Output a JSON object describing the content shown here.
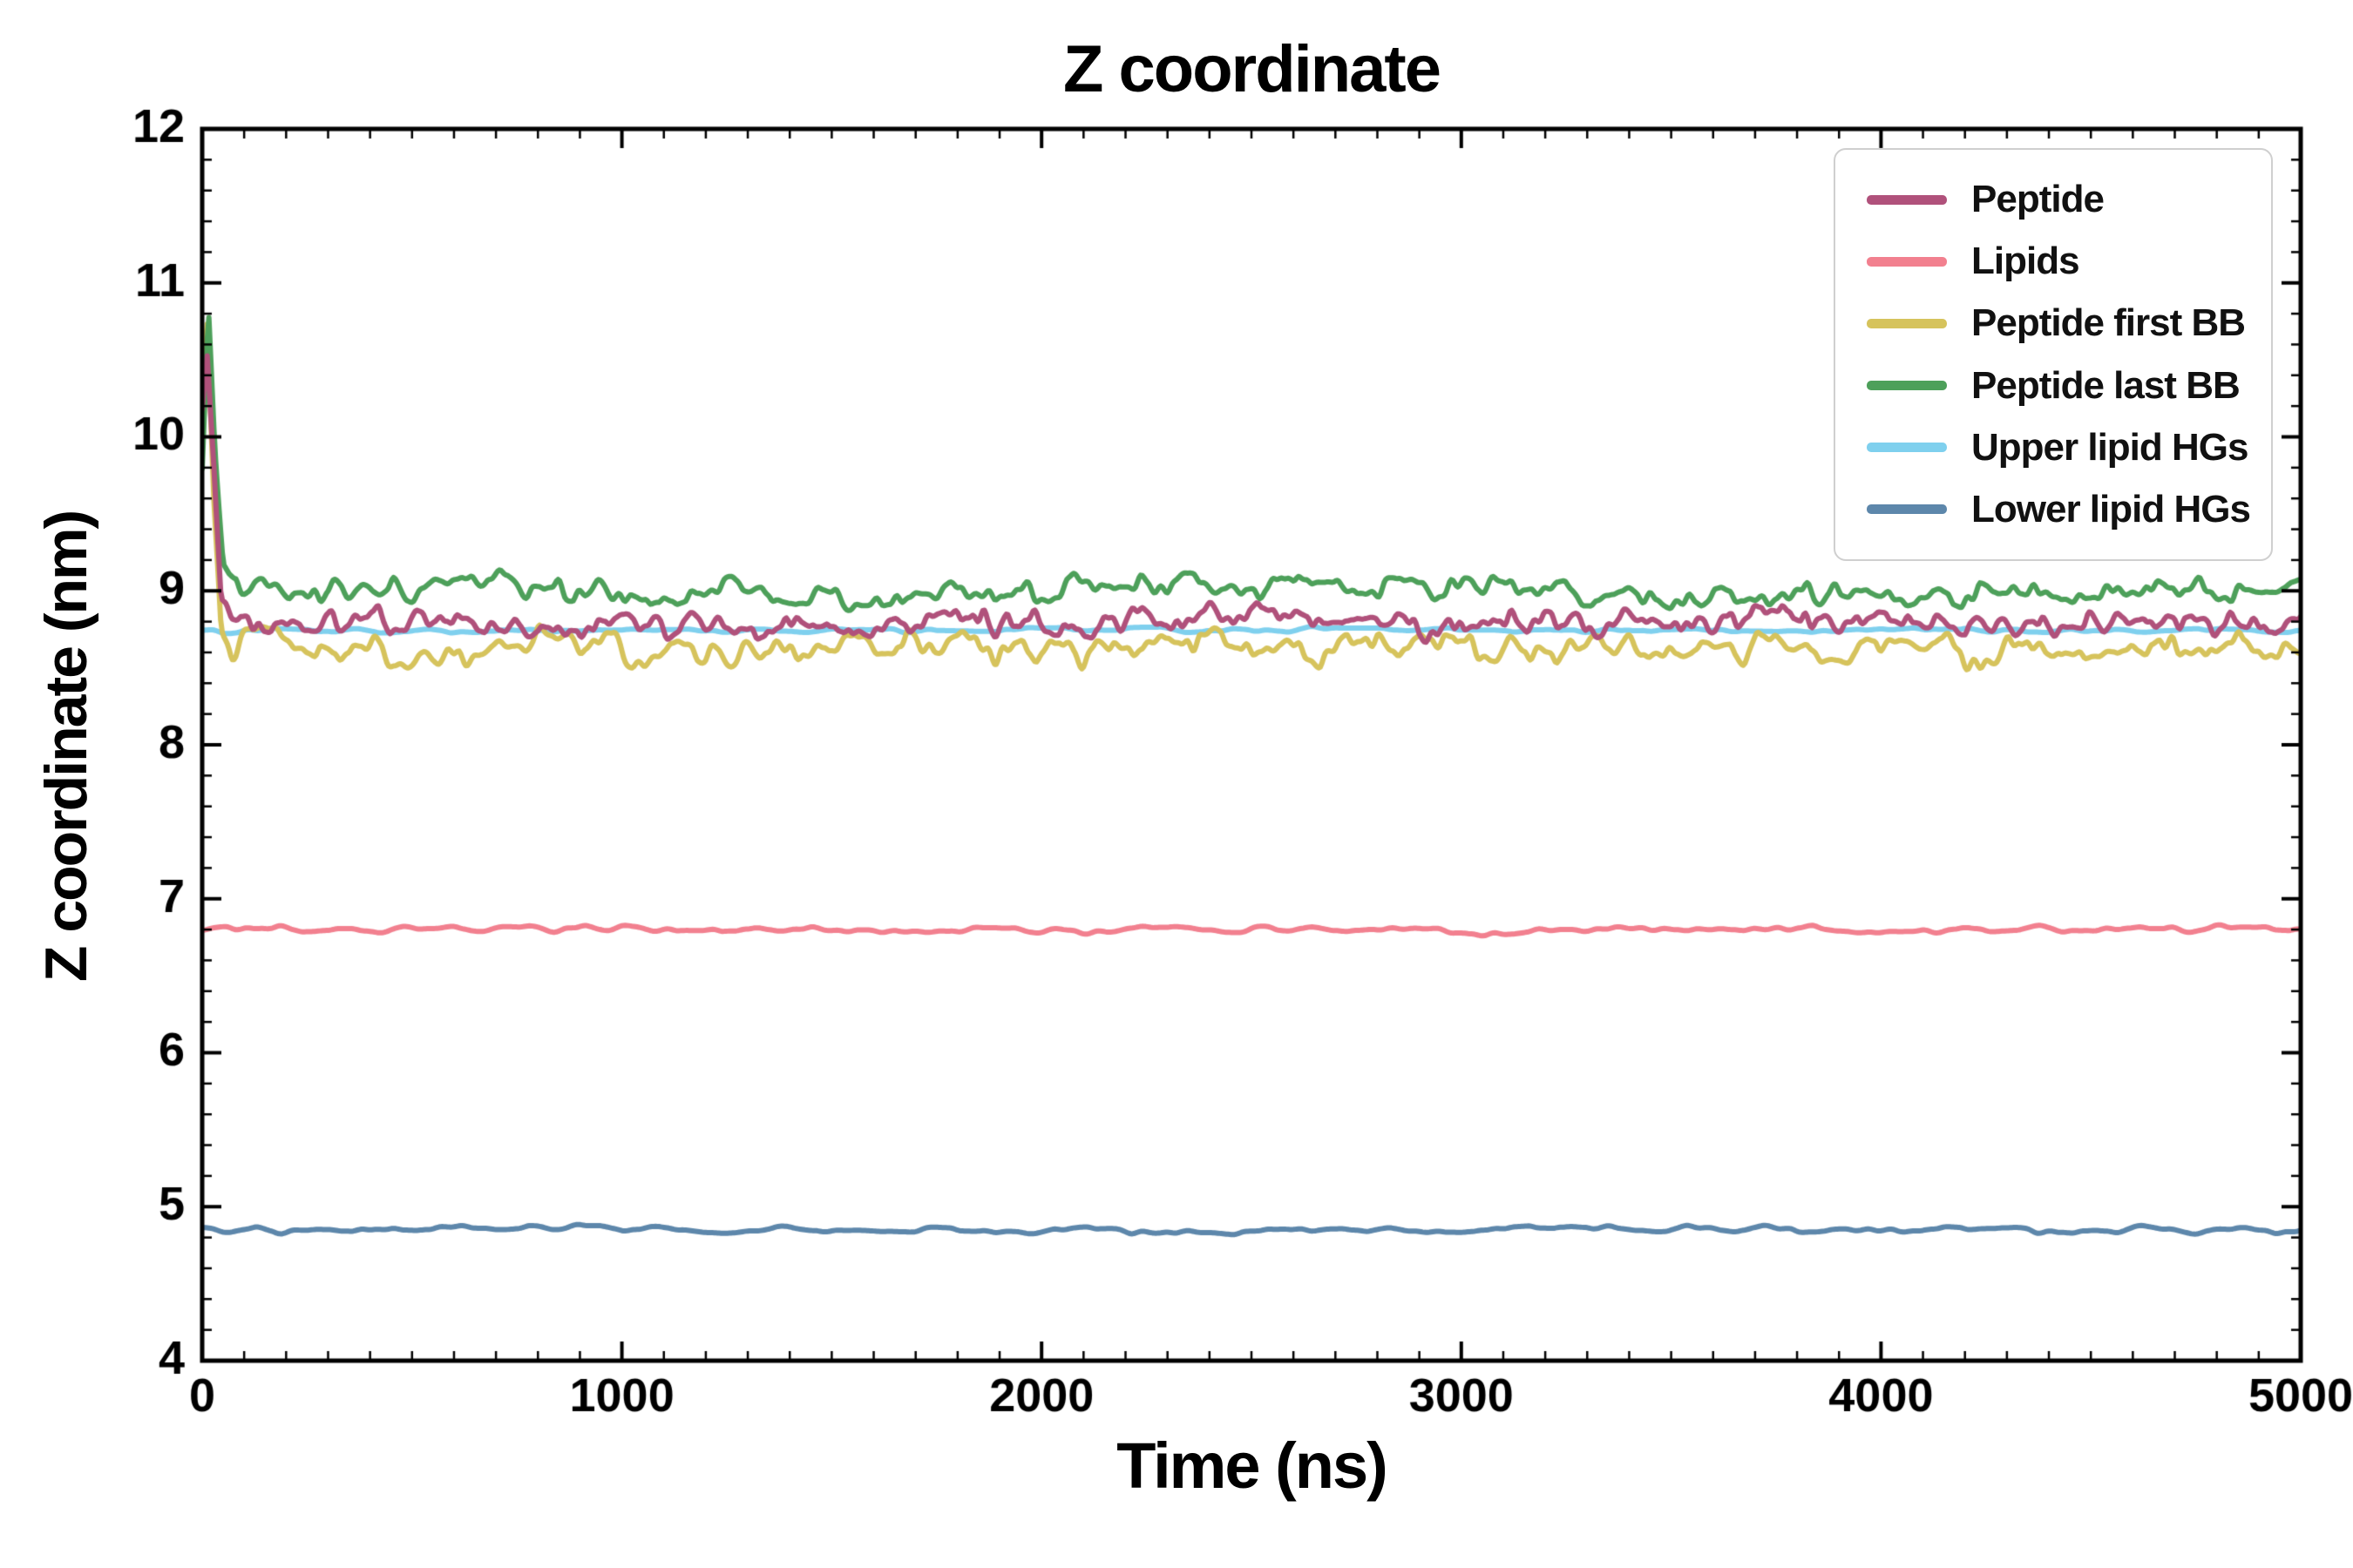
{
  "figure": {
    "title": "Z coordinate",
    "xlabel": "Time (ns)",
    "ylabel": "Z coordinate (nm)"
  },
  "chart_data": {
    "type": "line",
    "title": "Z coordinate",
    "xlabel": "Time (ns)",
    "ylabel": "Z coordinate (nm)",
    "xlim": [
      0,
      5000
    ],
    "ylim": [
      4,
      12
    ],
    "xticks": [
      0,
      1000,
      2000,
      3000,
      4000,
      5000
    ],
    "yticks": [
      4,
      5,
      6,
      7,
      8,
      9,
      10,
      11,
      12
    ],
    "x_minor_step": 100,
    "y_minor_step": 0.2,
    "grid": false,
    "legend_position": "upper right",
    "draw_order": [
      4,
      5,
      1,
      2,
      3,
      0
    ],
    "series": [
      {
        "name": "Peptide",
        "color": "#b0517b",
        "linewidth": 6,
        "anchors_x": [
          0,
          12,
          28,
          45,
          70,
          100,
          250,
          500,
          750,
          1000,
          1250,
          1500,
          1750,
          2000,
          2250,
          2500,
          2750,
          3000,
          3250,
          3500,
          3750,
          4000,
          4250,
          4500,
          4750,
          5000
        ],
        "anchors_y": [
          10.2,
          10.6,
          9.9,
          8.95,
          8.78,
          8.8,
          8.78,
          8.82,
          8.76,
          8.8,
          8.78,
          8.74,
          8.8,
          8.78,
          8.82,
          8.86,
          8.78,
          8.76,
          8.8,
          8.78,
          8.84,
          8.8,
          8.78,
          8.76,
          8.8,
          8.78
        ],
        "noise_amp": 0.1,
        "noise_scale_ns": 30,
        "noise_seed": 11
      },
      {
        "name": "Lipids",
        "color": "#f2808f",
        "linewidth": 6,
        "anchors_x": [
          0,
          1000,
          2000,
          3000,
          4000,
          5000
        ],
        "anchors_y": [
          6.8,
          6.81,
          6.8,
          6.79,
          6.8,
          6.8
        ],
        "noise_amp": 0.03,
        "noise_scale_ns": 60,
        "noise_seed": 22
      },
      {
        "name": "Peptide first BB",
        "color": "#d6c35c",
        "linewidth": 6,
        "anchors_x": [
          0,
          12,
          28,
          45,
          70,
          100,
          250,
          500,
          750,
          1000,
          1250,
          1500,
          1750,
          2000,
          2250,
          2500,
          2750,
          3000,
          3250,
          3500,
          3750,
          4000,
          4250,
          4500,
          4750,
          5000
        ],
        "anchors_y": [
          10.5,
          10.78,
          9.6,
          8.8,
          8.63,
          8.65,
          8.68,
          8.55,
          8.66,
          8.62,
          8.58,
          8.64,
          8.66,
          8.6,
          8.64,
          8.68,
          8.6,
          8.66,
          8.62,
          8.58,
          8.64,
          8.66,
          8.6,
          8.64,
          8.62,
          8.66
        ],
        "noise_amp": 0.13,
        "noise_scale_ns": 35,
        "noise_seed": 33
      },
      {
        "name": "Peptide last BB",
        "color": "#4da05a",
        "linewidth": 6,
        "anchors_x": [
          0,
          15,
          30,
          50,
          75,
          100,
          250,
          500,
          750,
          1000,
          1250,
          1500,
          1750,
          2000,
          2250,
          2500,
          2750,
          3000,
          3250,
          3500,
          3750,
          4000,
          4250,
          4500,
          4750,
          5000
        ],
        "anchors_y": [
          9.85,
          10.85,
          10.0,
          9.2,
          9.0,
          9.0,
          9.02,
          8.98,
          9.06,
          8.98,
          9.0,
          8.96,
          9.02,
          9.0,
          9.04,
          9.06,
          8.98,
          9.04,
          9.0,
          8.96,
          9.02,
          8.98,
          9.0,
          8.96,
          9.0,
          9.04
        ],
        "noise_amp": 0.11,
        "noise_scale_ns": 35,
        "noise_seed": 44
      },
      {
        "name": "Upper lipid HGs",
        "color": "#7fd0ee",
        "linewidth": 6,
        "anchors_x": [
          0,
          2500,
          5000
        ],
        "anchors_y": [
          8.74,
          8.75,
          8.74
        ],
        "noise_amp": 0.02,
        "noise_scale_ns": 60,
        "noise_seed": 55
      },
      {
        "name": "Lower lipid HGs",
        "color": "#5d87ab",
        "linewidth": 6,
        "anchors_x": [
          0,
          1000,
          2000,
          3000,
          4000,
          5000
        ],
        "anchors_y": [
          4.85,
          4.86,
          4.84,
          4.85,
          4.86,
          4.85
        ],
        "noise_amp": 0.03,
        "noise_scale_ns": 60,
        "noise_seed": 66
      }
    ]
  }
}
